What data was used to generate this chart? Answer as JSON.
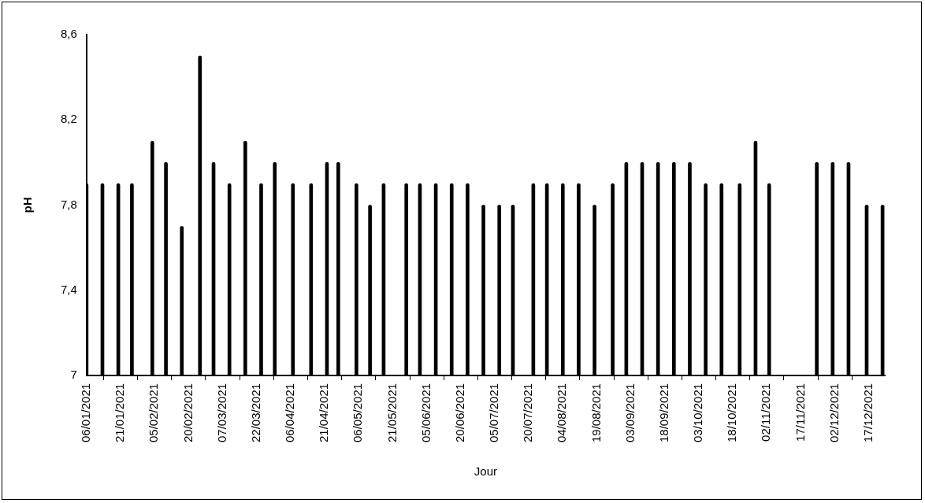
{
  "chart_data": {
    "type": "bar",
    "xlabel": "Jour",
    "ylabel": "pH",
    "color": "#000000",
    "x": [
      "2021-01-06",
      "2021-01-13",
      "2021-01-20",
      "2021-01-26",
      "2021-02-04",
      "2021-02-10",
      "2021-02-17",
      "2021-02-25",
      "2021-03-03",
      "2021-03-10",
      "2021-03-17",
      "2021-03-24",
      "2021-03-30",
      "2021-04-07",
      "2021-04-15",
      "2021-04-22",
      "2021-04-27",
      "2021-05-05",
      "2021-05-11",
      "2021-05-17",
      "2021-05-27",
      "2021-06-02",
      "2021-06-09",
      "2021-06-16",
      "2021-06-23",
      "2021-06-30",
      "2021-07-07",
      "2021-07-13",
      "2021-07-22",
      "2021-07-28",
      "2021-08-04",
      "2021-08-11",
      "2021-08-18",
      "2021-08-26",
      "2021-09-01",
      "2021-09-08",
      "2021-09-15",
      "2021-09-22",
      "2021-09-29",
      "2021-10-06",
      "2021-10-13",
      "2021-10-21",
      "2021-10-28",
      "2021-11-03",
      "2021-11-24",
      "2021-12-01",
      "2021-12-08",
      "2021-12-16",
      "2021-12-23"
    ],
    "values": [
      7.9,
      7.9,
      7.9,
      7.9,
      8.1,
      8.0,
      7.7,
      8.5,
      8.0,
      7.9,
      8.1,
      7.9,
      8.0,
      7.9,
      7.9,
      8.0,
      8.0,
      7.9,
      7.8,
      7.9,
      7.9,
      7.9,
      7.9,
      7.9,
      7.9,
      7.8,
      7.8,
      7.8,
      7.9,
      7.9,
      7.9,
      7.9,
      7.8,
      7.9,
      8.0,
      8.0,
      8.0,
      8.0,
      8.0,
      7.9,
      7.9,
      7.9,
      8.1,
      7.9,
      8.0,
      8.0,
      8.0,
      7.8,
      7.8
    ],
    "xlim": [
      "2021-01-06",
      "2021-12-24"
    ],
    "xticks": [
      {
        "value": "2021-01-06",
        "label": "06/01/2021"
      },
      {
        "value": "2021-01-21",
        "label": "21/01/2021"
      },
      {
        "value": "2021-02-05",
        "label": "05/02/2021"
      },
      {
        "value": "2021-02-20",
        "label": "20/02/2021"
      },
      {
        "value": "2021-03-07",
        "label": "07/03/2021"
      },
      {
        "value": "2021-03-22",
        "label": "22/03/2021"
      },
      {
        "value": "2021-04-06",
        "label": "06/04/2021"
      },
      {
        "value": "2021-04-21",
        "label": "21/04/2021"
      },
      {
        "value": "2021-05-06",
        "label": "06/05/2021"
      },
      {
        "value": "2021-05-21",
        "label": "21/05/2021"
      },
      {
        "value": "2021-06-05",
        "label": "05/06/2021"
      },
      {
        "value": "2021-06-20",
        "label": "20/06/2021"
      },
      {
        "value": "2021-07-05",
        "label": "05/07/2021"
      },
      {
        "value": "2021-07-20",
        "label": "20/07/2021"
      },
      {
        "value": "2021-08-04",
        "label": "04/08/2021"
      },
      {
        "value": "2021-08-19",
        "label": "19/08/2021"
      },
      {
        "value": "2021-09-03",
        "label": "03/09/2021"
      },
      {
        "value": "2021-09-18",
        "label": "18/09/2021"
      },
      {
        "value": "2021-10-03",
        "label": "03/10/2021"
      },
      {
        "value": "2021-10-18",
        "label": "18/10/2021"
      },
      {
        "value": "2021-11-02",
        "label": "02/11/2021"
      },
      {
        "value": "2021-11-17",
        "label": "17/11/2021"
      },
      {
        "value": "2021-12-02",
        "label": "02/12/2021"
      },
      {
        "value": "2021-12-17",
        "label": "17/12/2021"
      }
    ],
    "ylim": [
      7,
      8.6
    ],
    "yticks": [
      7,
      {
        "value": 7.4,
        "label": "7,4"
      },
      {
        "value": 7.8,
        "label": "7,8"
      },
      {
        "value": 8.2,
        "label": "8,2"
      },
      {
        "value": 8.6,
        "label": "8,6"
      }
    ]
  }
}
